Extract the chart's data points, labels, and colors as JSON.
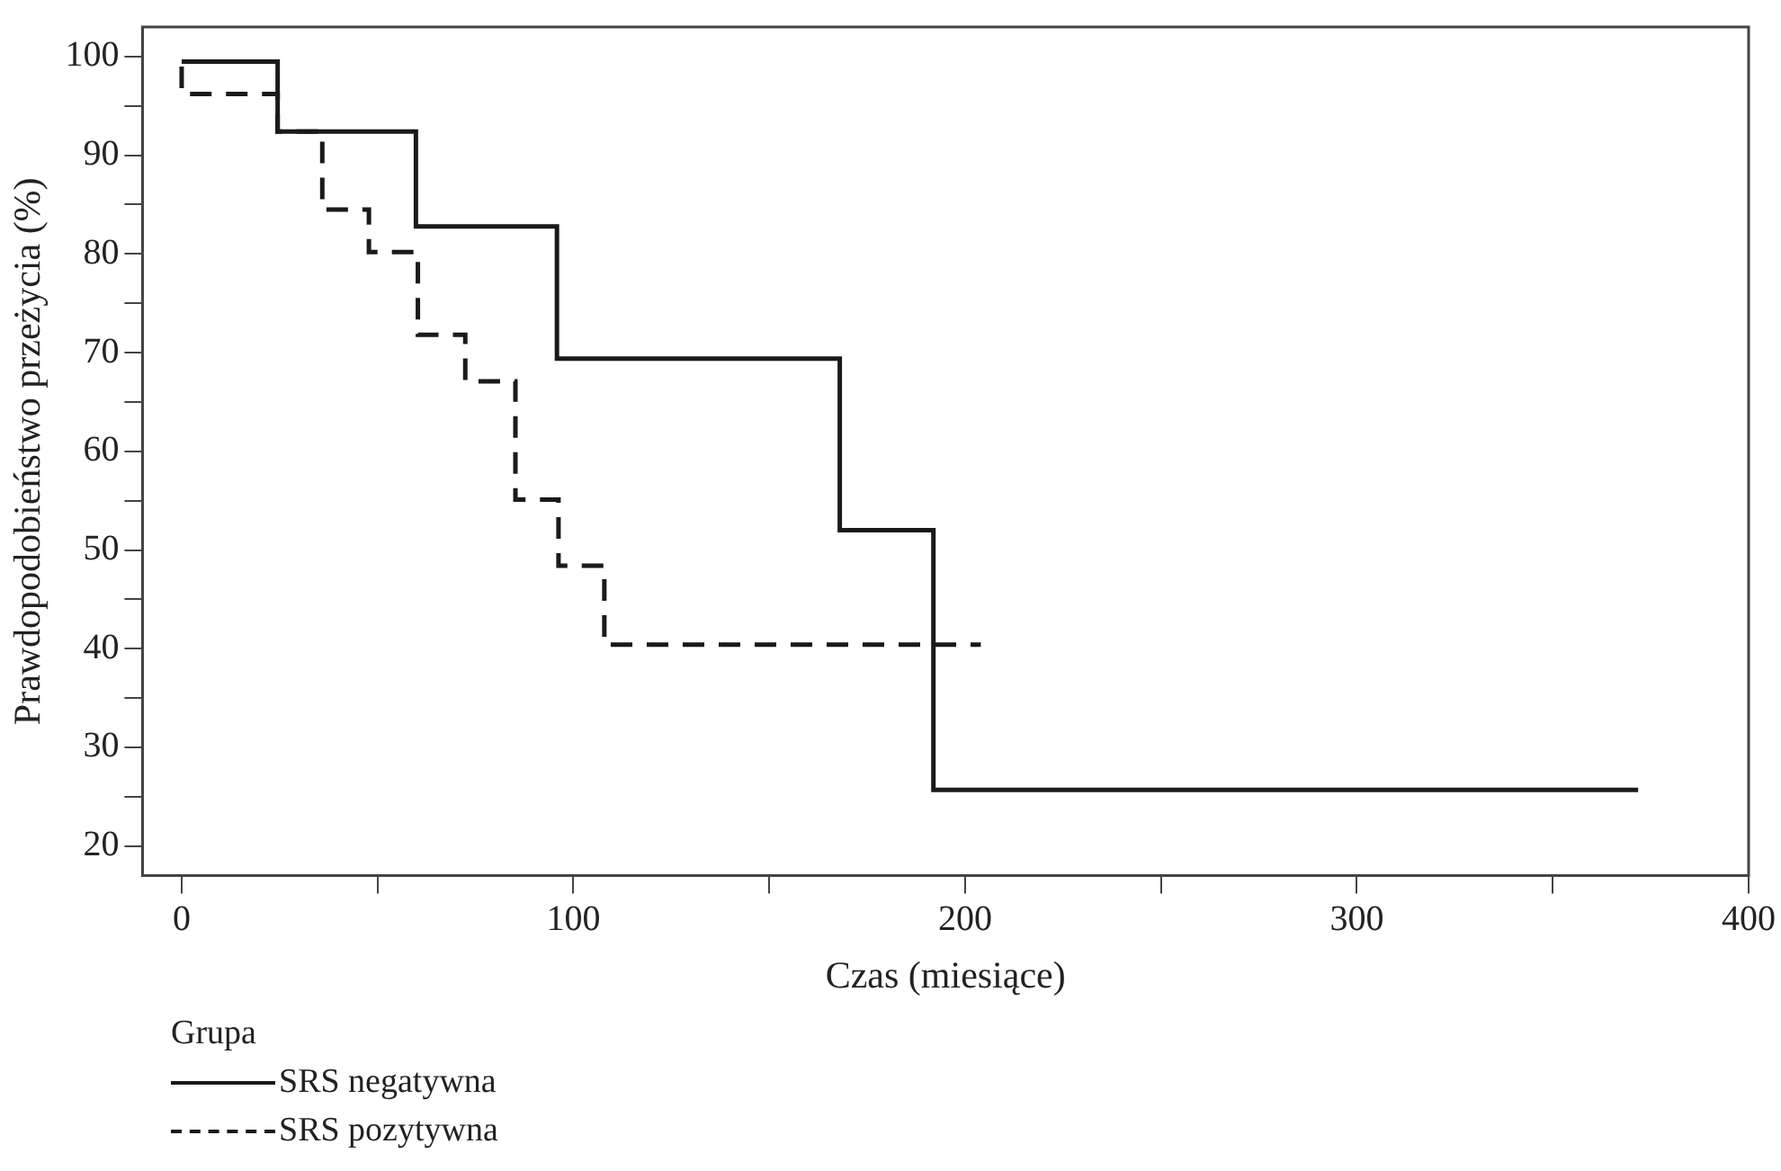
{
  "chart_data": {
    "type": "step",
    "xlabel": "Czas (miesiące)",
    "ylabel": "Prawdopodobieństwo przeżycia (%)",
    "legend_title": "Grupa",
    "legend": "bottom left",
    "grid": false,
    "series": [
      {
        "name": "SRS negatywna",
        "color": "#1a1a1a",
        "line_style": "solid",
        "x": [
          0,
          24.5,
          59.8,
          95.8,
          168,
          191.9,
          371.8
        ],
        "values": [
          99.5,
          92.4,
          82.8,
          69.4,
          52,
          25.7,
          25.7
        ]
      },
      {
        "name": "SRS pozytywna",
        "color": "#1a1a1a",
        "line_style": "dashed",
        "x": [
          0,
          0,
          24.5,
          35.9,
          47.8,
          60.3,
          72.4,
          85.2,
          96.2,
          107.9,
          204
        ],
        "values": [
          99,
          96.2,
          92.4,
          84.5,
          80.2,
          71.8,
          67.1,
          55.1,
          48.4,
          40.4,
          40.4
        ]
      }
    ],
    "xlim": [
      -10,
      400
    ],
    "xticks": [
      0,
      {
        "value": 50,
        "label": null
      },
      100,
      {
        "value": 150,
        "label": null
      },
      200,
      {
        "value": 250,
        "label": null
      },
      300,
      {
        "value": 350,
        "label": null
      },
      400
    ],
    "ylim": [
      17,
      103
    ],
    "yticks": [
      20,
      {
        "value": 25,
        "label": null
      },
      30,
      {
        "value": 35,
        "label": null
      },
      40,
      {
        "value": 45,
        "label": null
      },
      50,
      {
        "value": 55,
        "label": null
      },
      60,
      {
        "value": 65,
        "label": null
      },
      70,
      {
        "value": 75,
        "label": null
      },
      80,
      {
        "value": 85,
        "label": null
      },
      90,
      {
        "value": 95,
        "label": null
      },
      100
    ]
  }
}
